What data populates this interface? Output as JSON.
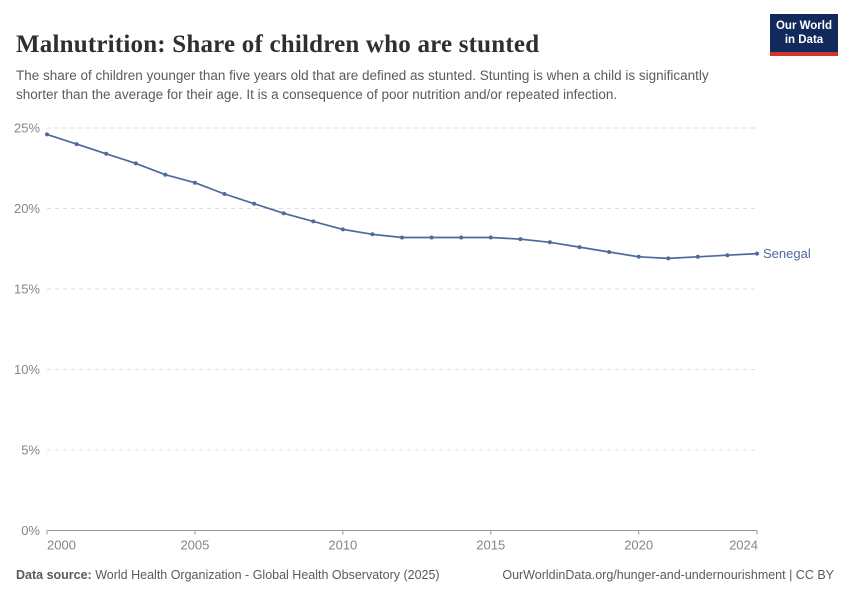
{
  "header": {
    "title": "Malnutrition: Share of children who are stunted",
    "subtitle": "The share of children younger than five years old that are defined as stunted. Stunting is when a child is significantly shorter than the average for their age. It is a consequence of poor nutrition and/or repeated infection.",
    "logo": {
      "line1": "Our World",
      "line2": "in Data"
    }
  },
  "chart_data": {
    "type": "line",
    "title": "Malnutrition: Share of children who are stunted",
    "x": [
      2000,
      2001,
      2002,
      2003,
      2004,
      2005,
      2006,
      2007,
      2008,
      2009,
      2010,
      2011,
      2012,
      2013,
      2014,
      2015,
      2016,
      2017,
      2018,
      2019,
      2020,
      2021,
      2022,
      2023,
      2024
    ],
    "series": [
      {
        "name": "Senegal",
        "color": "#4c6a9c",
        "values": [
          24.6,
          24.0,
          23.4,
          22.8,
          22.1,
          21.6,
          20.9,
          20.3,
          19.7,
          19.2,
          18.7,
          18.4,
          18.2,
          18.2,
          18.2,
          18.2,
          18.1,
          17.9,
          17.6,
          17.3,
          17.0,
          16.9,
          17.0,
          17.1,
          17.2
        ]
      }
    ],
    "xlabel": "",
    "ylabel": "",
    "ylim": [
      0,
      25
    ],
    "yticks": [
      0,
      5,
      10,
      15,
      20,
      25
    ],
    "ytick_suffix": "%",
    "xticks": [
      2000,
      2005,
      2010,
      2015,
      2020,
      2024
    ],
    "grid": "horizontal-dashed",
    "legend": "end-of-line-label",
    "colors": {
      "grid": "#dedede",
      "axis": "#999999",
      "tick_label": "#858585",
      "series_label": "#4c6a9c"
    }
  },
  "footer": {
    "source_label": "Data source:",
    "source_text": "World Health Organization - Global Health Observatory (2025)",
    "link_text": "OurWorldinData.org/hunger-and-undernourishment | CC BY"
  }
}
